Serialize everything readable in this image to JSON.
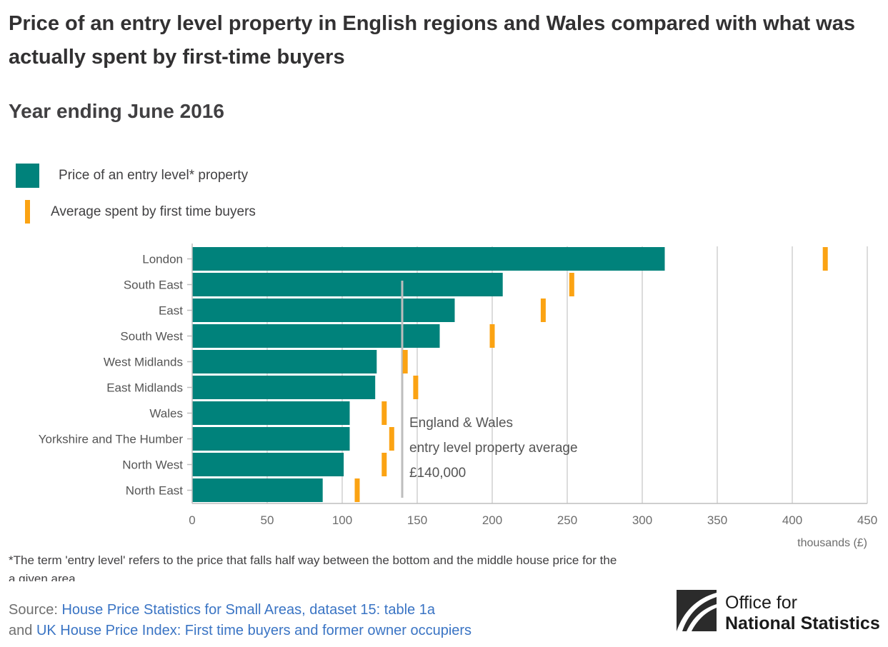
{
  "title": "Price of an entry level property in English regions and Wales compared with what was actually spent by first-time buyers",
  "subtitle": "Year ending June 2016",
  "legend": {
    "entry_level_label": "Price of an entry level* property",
    "first_time_label": "Average spent by first time buyers"
  },
  "colors": {
    "bar": "#00827b",
    "tick": "#fba313",
    "grid": "#d0d0d0",
    "reference": "#bdbdbd"
  },
  "chart_data": {
    "type": "bar",
    "orientation": "horizontal",
    "categories": [
      "London",
      "South East",
      "East",
      "South West",
      "West Midlands",
      "East Midlands",
      "Wales",
      "Yorkshire and The Humber",
      "North West",
      "North East"
    ],
    "series": [
      {
        "name": "Price of an entry level* property",
        "type": "bar",
        "values": [
          315,
          207,
          175,
          165,
          123,
          122,
          105,
          105,
          101,
          87
        ]
      },
      {
        "name": "Average spent by first time buyers",
        "type": "marker",
        "values": [
          422,
          253,
          234,
          200,
          142,
          149,
          128,
          133,
          128,
          110
        ]
      }
    ],
    "xlim": [
      0,
      450
    ],
    "xticks": [
      "0",
      "50",
      "100",
      "150",
      "200",
      "250",
      "300",
      "350",
      "400",
      "450"
    ],
    "xlabel": "thousands (£)",
    "grid": true,
    "legend_position": "top-left",
    "reference_line": {
      "value": 140,
      "label_lines": [
        "England & Wales",
        "entry level property average",
        "£140,000"
      ]
    }
  },
  "footnote": "*The term 'entry level' refers to the price that falls half way between the bottom and the middle house price for the a given area.",
  "source": {
    "prefix": "Source: ",
    "link1": "House Price Statistics for Small Areas, dataset 15: table 1a",
    "connector": "and ",
    "link2": "UK House Price Index: First time buyers and former owner occupiers"
  },
  "logo": {
    "line1": "Office for",
    "line2": "National Statistics"
  }
}
